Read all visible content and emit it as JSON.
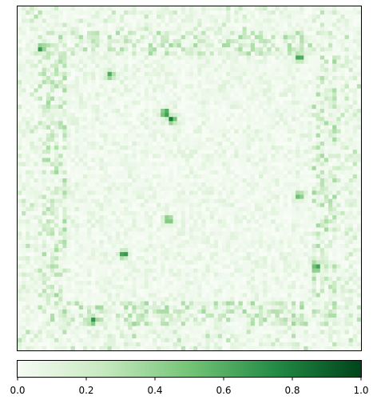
{
  "chart_data": {
    "type": "heatmap",
    "title": "",
    "xlabel": "",
    "ylabel": "",
    "colormap": "Greens",
    "colormap_stops": [
      "#f7fcf5",
      "#c7e9c0",
      "#74c476",
      "#238b45",
      "#00441b"
    ],
    "value_range": [
      0.0,
      1.0
    ],
    "axes_ticks_visible": false,
    "colorbar": {
      "orientation": "horizontal",
      "placement": "bottom",
      "ticks": [
        0.0,
        0.2,
        0.4,
        0.6,
        0.8,
        1.0
      ],
      "tick_labels": [
        "0.0",
        "0.2",
        "0.4",
        "0.6",
        "0.8",
        "1.0"
      ]
    },
    "pattern": {
      "description_role": "saliency-style map; mostly near-zero with a framed square ring of higher values and scattered hot spots",
      "grid_size": 84,
      "base_level": 0.03,
      "ring_outer_fraction": 0.86,
      "ring_inner_fraction": 0.72,
      "ring_level": 0.35,
      "border_band_level": 0.3,
      "interior_level": 0.12,
      "hotspots": [
        {
          "row": 0.31,
          "col": 0.43,
          "value": 0.95
        },
        {
          "row": 0.33,
          "col": 0.45,
          "value": 0.85
        },
        {
          "row": 0.72,
          "col": 0.31,
          "value": 0.85
        },
        {
          "row": 0.76,
          "col": 0.87,
          "value": 0.8
        },
        {
          "row": 0.15,
          "col": 0.82,
          "value": 0.75
        },
        {
          "row": 0.2,
          "col": 0.27,
          "value": 0.7
        },
        {
          "row": 0.62,
          "col": 0.44,
          "value": 0.7
        },
        {
          "row": 0.91,
          "col": 0.22,
          "value": 0.7
        },
        {
          "row": 0.12,
          "col": 0.07,
          "value": 0.7
        },
        {
          "row": 0.55,
          "col": 0.82,
          "value": 0.65
        }
      ]
    }
  }
}
